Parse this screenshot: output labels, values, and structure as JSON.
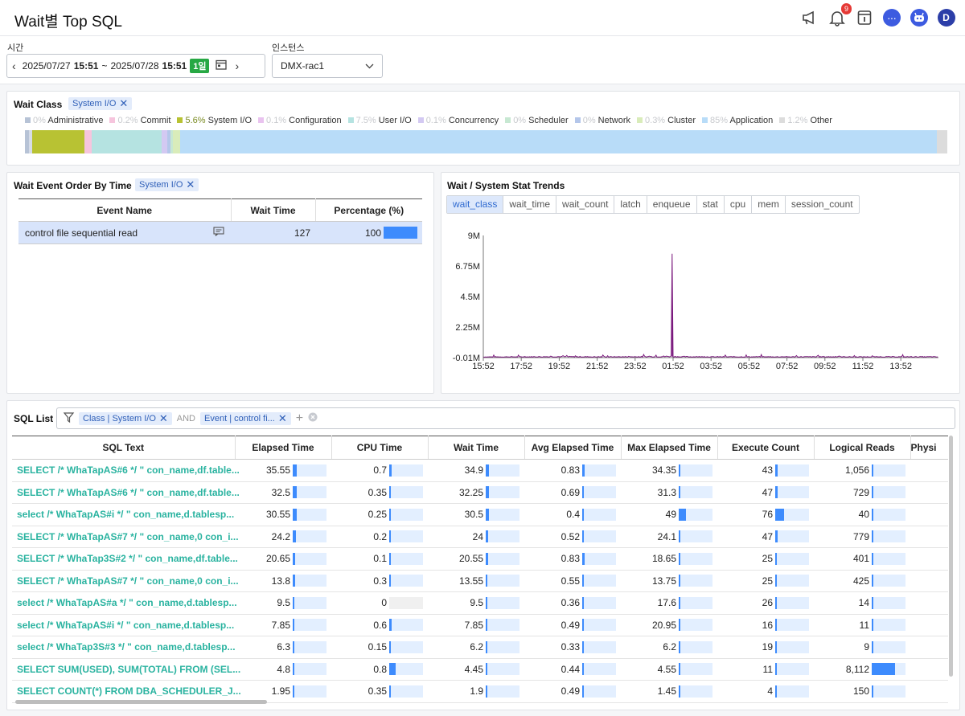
{
  "header": {
    "title": "Wait별 Top SQL",
    "notification_count": "9",
    "avatar": "D"
  },
  "filters": {
    "time_label": "시간",
    "time_start_date": "2025/07/27",
    "time_start_time": "15:51",
    "time_sep": "~",
    "time_end_date": "2025/07/28",
    "time_end_time": "15:51",
    "range_badge": "1일",
    "instance_label": "인스턴스",
    "instance_value": "DMX-rac1"
  },
  "wait_class": {
    "title": "Wait Class",
    "chip": "System I/O",
    "legend": [
      {
        "pct": "0%",
        "name": "Administrative",
        "color": "#b7c3d6"
      },
      {
        "pct": "0.2%",
        "name": "Commit",
        "color": "#f6c5dd"
      },
      {
        "pct": "5.6%",
        "name": "System I/O",
        "color": "#b8c233"
      },
      {
        "pct": "0.1%",
        "name": "Configuration",
        "color": "#e9c3ef"
      },
      {
        "pct": "7.5%",
        "name": "User I/O",
        "color": "#b5e3e1"
      },
      {
        "pct": "0.1%",
        "name": "Concurrency",
        "color": "#d3c9f2"
      },
      {
        "pct": "0%",
        "name": "Scheduler",
        "color": "#c7e8d2"
      },
      {
        "pct": "0%",
        "name": "Network",
        "color": "#b4c6ea"
      },
      {
        "pct": "0.3%",
        "name": "Cluster",
        "color": "#d9ecba"
      },
      {
        "pct": "85%",
        "name": "Application",
        "color": "#b8dcf8"
      },
      {
        "pct": "1.2%",
        "name": "Other",
        "color": "#dcdcdc"
      }
    ]
  },
  "event_panel": {
    "title": "Wait Event Order By Time",
    "chip": "System I/O",
    "columns": [
      "Event Name",
      "Wait Time",
      "Percentage (%)"
    ],
    "rows": [
      {
        "name": "control file sequential read",
        "wait_time": "127",
        "percentage": "100",
        "pct_value": 100
      }
    ]
  },
  "trend_panel": {
    "title": "Wait / System Stat Trends",
    "tabs": [
      "wait_class",
      "wait_time",
      "wait_count",
      "latch",
      "enqueue",
      "stat",
      "cpu",
      "mem",
      "session_count"
    ],
    "active_tab": "wait_class"
  },
  "chart_data": {
    "type": "line",
    "title": "",
    "ylim": [
      -10000,
      9000000
    ],
    "y_ticks": [
      "9M",
      "6.75M",
      "4.5M",
      "2.25M",
      "-0.01M"
    ],
    "x_ticks": [
      "15:52",
      "17:52",
      "19:52",
      "21:52",
      "23:52",
      "01:52",
      "03:52",
      "05:52",
      "07:52",
      "09:52",
      "11:52",
      "13:52"
    ],
    "series": [
      {
        "color": "#7b1a7e",
        "baseline": 50000,
        "points": [
          [
            "15:52",
            40000
          ],
          [
            "17:52",
            45000
          ],
          [
            "19:52",
            60000
          ],
          [
            "21:52",
            45000
          ],
          [
            "23:52",
            50000
          ],
          [
            "01:48",
            80000
          ],
          [
            "01:49",
            7650000
          ],
          [
            "01:50",
            60000
          ],
          [
            "03:52",
            45000
          ],
          [
            "05:52",
            50000
          ],
          [
            "07:52",
            45000
          ],
          [
            "09:52",
            50000
          ],
          [
            "11:52",
            45000
          ],
          [
            "13:52",
            50000
          ],
          [
            "15:51",
            45000
          ]
        ]
      }
    ]
  },
  "sql_list": {
    "title": "SQL List",
    "filter_chip1": "Class | System I/O",
    "filter_and": "AND",
    "filter_chip2": "Event | control fi...",
    "columns": [
      "SQL Text",
      "Elapsed Time",
      "CPU Time",
      "Wait Time",
      "Avg Elapsed Time",
      "Max Elapsed Time",
      "Execute Count",
      "Logical Reads",
      "Physi"
    ],
    "rows": [
      {
        "sql": "SELECT /* WhaTapAS#6 */ \" con_name,df.table...",
        "elapsed": "35.55",
        "cpu": "0.7",
        "wait": "34.9",
        "avg": "0.83",
        "max": "34.35",
        "exec": "43",
        "logical": "1,056",
        "b": [
          0.12,
          0.06,
          0.1,
          0.06,
          0.05,
          0.08,
          0.03
        ]
      },
      {
        "sql": "SELECT /* WhaTapAS#6 */ \" con_name,df.table...",
        "elapsed": "32.5",
        "cpu": "0.35",
        "wait": "32.25",
        "avg": "0.69",
        "max": "31.3",
        "exec": "47",
        "logical": "729",
        "b": [
          0.11,
          0.04,
          0.09,
          0.05,
          0.05,
          0.08,
          0.02
        ]
      },
      {
        "sql": "select /* WhaTapAS#i */ \" con_name,d.tablesp...",
        "elapsed": "30.55",
        "cpu": "0.25",
        "wait": "30.5",
        "avg": "0.4",
        "max": "49",
        "exec": "76",
        "logical": "40",
        "b": [
          0.11,
          0.04,
          0.09,
          0.04,
          0.22,
          0.25,
          0.01
        ]
      },
      {
        "sql": "SELECT /* WhaTapAS#7 */ \" con_name,0 con_i...",
        "elapsed": "24.2",
        "cpu": "0.2",
        "wait": "24",
        "avg": "0.52",
        "max": "24.1",
        "exec": "47",
        "logical": "779",
        "b": [
          0.09,
          0.03,
          0.08,
          0.04,
          0.04,
          0.08,
          0.02
        ]
      },
      {
        "sql": "SELECT /* WhaTap3S#2 */ \" con_name,df.table...",
        "elapsed": "20.65",
        "cpu": "0.1",
        "wait": "20.55",
        "avg": "0.83",
        "max": "18.65",
        "exec": "25",
        "logical": "401",
        "b": [
          0.08,
          0.02,
          0.07,
          0.06,
          0.04,
          0.05,
          0.01
        ]
      },
      {
        "sql": "SELECT /* WhaTapAS#7 */ \" con_name,0 con_i...",
        "elapsed": "13.8",
        "cpu": "0.3",
        "wait": "13.55",
        "avg": "0.55",
        "max": "13.75",
        "exec": "25",
        "logical": "425",
        "b": [
          0.06,
          0.04,
          0.05,
          0.04,
          0.03,
          0.05,
          0.01
        ]
      },
      {
        "sql": "select /* WhaTapAS#a */ \" con_name,d.tablesp...",
        "elapsed": "9.5",
        "cpu": "0",
        "wait": "9.5",
        "avg": "0.36",
        "max": "17.6",
        "exec": "26",
        "logical": "14",
        "b": [
          0.04,
          0,
          0.04,
          0.03,
          0.03,
          0.05,
          0.005
        ]
      },
      {
        "sql": "select /* WhaTapAS#i */ \" con_name,d.tablesp...",
        "elapsed": "7.85",
        "cpu": "0.6",
        "wait": "7.85",
        "avg": "0.49",
        "max": "20.95",
        "exec": "16",
        "logical": "11",
        "b": [
          0.03,
          0.06,
          0.03,
          0.04,
          0.04,
          0.04,
          0.005
        ]
      },
      {
        "sql": "select /* WhaTap3S#3 */ \" con_name,d.tablesp...",
        "elapsed": "6.3",
        "cpu": "0.15",
        "wait": "6.2",
        "avg": "0.33",
        "max": "6.2",
        "exec": "19",
        "logical": "9",
        "b": [
          0.03,
          0.02,
          0.03,
          0.03,
          0.02,
          0.04,
          0.005
        ]
      },
      {
        "sql": "SELECT SUM(USED), SUM(TOTAL) FROM (SEL...",
        "elapsed": "4.8",
        "cpu": "0.8",
        "wait": "4.45",
        "avg": "0.44",
        "max": "4.55",
        "exec": "11",
        "logical": "8,112",
        "b": [
          0.02,
          0.18,
          0.02,
          0.03,
          0.02,
          0.03,
          0.7
        ]
      },
      {
        "sql": "SELECT COUNT(*) FROM DBA_SCHEDULER_J...",
        "elapsed": "1.95",
        "cpu": "0.35",
        "wait": "1.9",
        "avg": "0.49",
        "max": "1.45",
        "exec": "4",
        "logical": "150",
        "b": [
          0.01,
          0.04,
          0.01,
          0.04,
          0.01,
          0.02,
          0.01
        ]
      }
    ]
  }
}
